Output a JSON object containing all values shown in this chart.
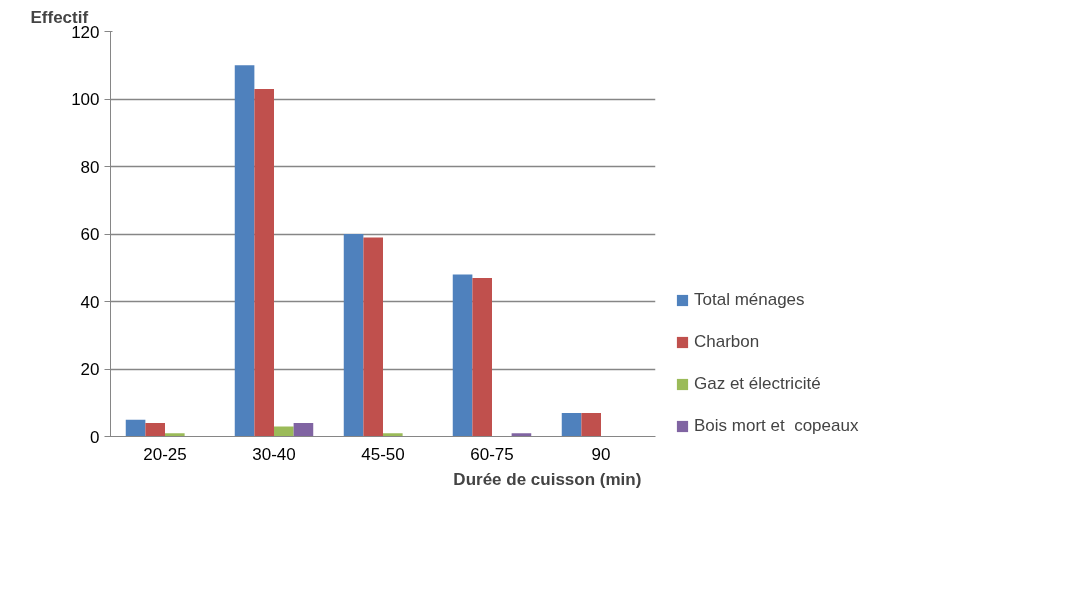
{
  "chart_data": {
    "type": "bar",
    "xlabel": "Durée de cuisson    (min)",
    "ylabel": "Effectif",
    "categories": [
      "20-25",
      "30-40",
      "45-50",
      "60-75",
      "90"
    ],
    "series": [
      {
        "name": "Total ménages",
        "color": "#4f81bd",
        "values": [
          5,
          110,
          60,
          48,
          7
        ]
      },
      {
        "name": "Charbon",
        "color": "#c0504d",
        "values": [
          4,
          103,
          59,
          47,
          7
        ]
      },
      {
        "name": "Gaz et électricité",
        "color": "#9bbb59",
        "values": [
          1,
          3,
          1,
          0,
          0
        ]
      },
      {
        "name": "Bois mort et  copeaux",
        "color": "#8064a2",
        "values": [
          0,
          4,
          0,
          1,
          0
        ]
      }
    ],
    "ylim": [
      0,
      120
    ],
    "yticks": [
      0,
      20,
      40,
      60,
      80,
      100,
      120
    ],
    "grid": "y",
    "legend": "right"
  }
}
